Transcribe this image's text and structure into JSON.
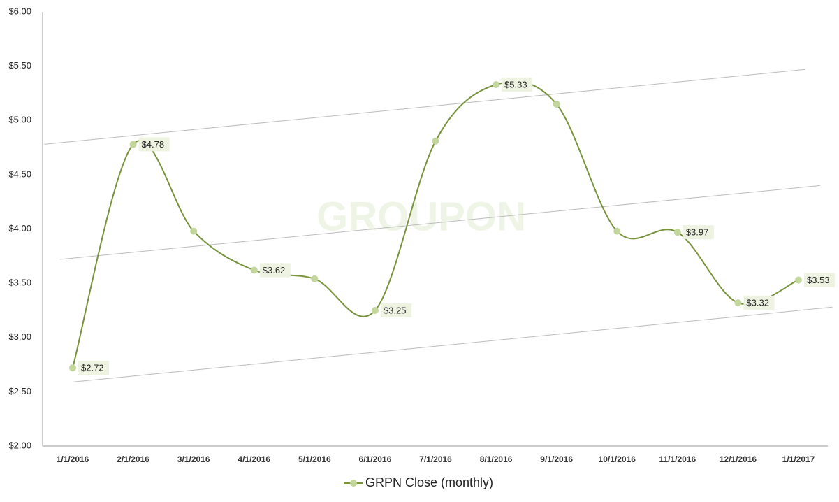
{
  "chart_data": {
    "type": "line",
    "watermark": "GROUPON",
    "categories": [
      "1/1/2016",
      "2/1/2016",
      "3/1/2016",
      "4/1/2016",
      "5/1/2016",
      "6/1/2016",
      "7/1/2016",
      "8/1/2016",
      "9/1/2016",
      "10/1/2016",
      "11/1/2016",
      "12/1/2016",
      "1/1/2017"
    ],
    "series": [
      {
        "name": "GRPN Close (monthly)",
        "color": "#77933c",
        "marker_color": "#c3d69b",
        "values": [
          2.72,
          4.78,
          3.98,
          3.62,
          3.54,
          3.25,
          4.81,
          5.33,
          5.15,
          3.98,
          3.97,
          3.32,
          3.53
        ],
        "value_labels": [
          "$2.72",
          "$4.78",
          null,
          "$3.62",
          null,
          "$3.25",
          null,
          "$5.33",
          null,
          null,
          "$3.97",
          "$3.32",
          "$3.53"
        ]
      }
    ],
    "trend_lines": [
      {
        "x": [
          -0.47,
          12.11
        ],
        "y": [
          4.78,
          5.47
        ]
      },
      {
        "x": [
          -0.21,
          12.36
        ],
        "y": [
          3.72,
          4.4
        ]
      },
      {
        "x": [
          0,
          12.56
        ],
        "y": [
          2.59,
          3.28
        ]
      }
    ],
    "ylim": [
      2,
      6
    ],
    "yticks": [
      {
        "value": 2,
        "label": "$2.00"
      },
      {
        "value": 2.5,
        "label": "$2.50"
      },
      {
        "value": 3,
        "label": "$3.00"
      },
      {
        "value": 3.5,
        "label": "$3.50"
      },
      {
        "value": 4,
        "label": "$4.00"
      },
      {
        "value": 4.5,
        "label": "$4.50"
      },
      {
        "value": 5,
        "label": "$5.00"
      },
      {
        "value": 5.5,
        "label": "$5.50"
      },
      {
        "value": 6,
        "label": "$6.00"
      }
    ],
    "legend": "bottom"
  }
}
